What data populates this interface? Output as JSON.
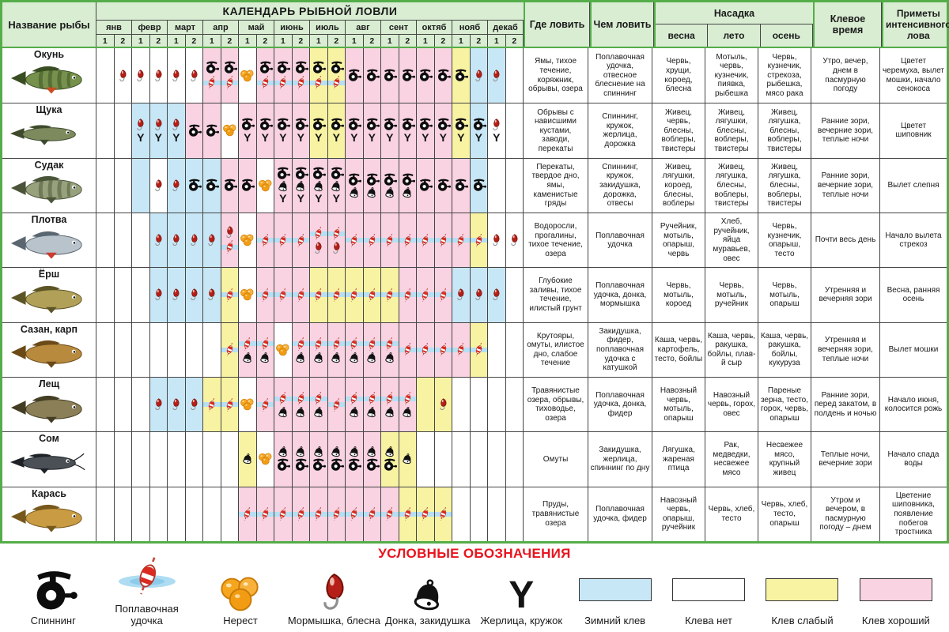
{
  "title": "КАЛЕНДАРЬ РЫБНОЙ ЛОВЛИ",
  "fish_name_header": "Название рыбы",
  "months": [
    "янв",
    "февр",
    "март",
    "апр",
    "май",
    "июнь",
    "июль",
    "авг",
    "сент",
    "октяб",
    "нояб",
    "декаб"
  ],
  "half_labels": [
    "1",
    "2"
  ],
  "columns": {
    "where": "Где ловить",
    "tackle": "Чем ловить",
    "bait": "Насадка",
    "bait_seasons": [
      "весна",
      "лето",
      "осень"
    ],
    "time": "Клевое время",
    "signs": "Приметы интенсивного лова"
  },
  "colors": {
    "winter": "#c8e7f6",
    "none": "#ffffff",
    "weak": "#f8f3a2",
    "good": "#f9d3e2",
    "header_bg": "#d9edd2",
    "frame_green": "#54ad49",
    "legend_red": "#e8141e"
  },
  "rows": [
    {
      "name": "Окунь",
      "fish": {
        "color": "#76914c",
        "dark": "#394d22",
        "stripes": true,
        "fin": "#cc4b22",
        "shape": "fish"
      },
      "cells": [
        "w",
        "w:j",
        "w:j",
        "w:j",
        "w:j",
        "w:j",
        "p:s,f",
        "p:s,f",
        "w:r",
        "p:s,f",
        "p:s,f",
        "p:s,f",
        "y:s,f",
        "y:s,f",
        "p:s",
        "p:s",
        "p:s",
        "p:s",
        "p:s",
        "p:s",
        "y:s",
        "b:j",
        "b:j",
        "w"
      ],
      "where": "Ямы, тихое течение, коряжник, обрывы, озера",
      "tackle": "Поплавочная удочка, отвесное блеснение на спиннинг",
      "bait_spring": "Червь, хрущи, короед, блесна",
      "bait_summer": "Мотыль, червь, кузнечик, пиявка, рыбешка",
      "bait_autumn": "Червь, кузнечик, стрекоза, рыбешка, мясо рака",
      "time": "Утро, вечер, днем в пасмурную погоду",
      "signs": "Цветет черемуха, вылет мошки, начало сенокоса"
    },
    {
      "name": "Щука",
      "fish": {
        "color": "#7d8a5e",
        "dark": "#3e4a2c",
        "stripes": false,
        "shape": "long"
      },
      "cells": [
        "w",
        "w",
        "b:j,z",
        "b:j,z",
        "b:j,z",
        "p:s",
        "p:s",
        "w:r",
        "p:s,z",
        "p:s,z",
        "p:s,z",
        "p:s,z",
        "y:s,z",
        "y:s,z",
        "p:s,z",
        "p:s,z",
        "p:s,z",
        "p:s,z",
        "p:s,z",
        "p:s,z",
        "y:s,z",
        "b:s,z",
        "w:j,z",
        "w"
      ],
      "where": "Обрывы с нависшими кустами, заводи, перекаты",
      "tackle": "Спиннинг, кружок, жерлица, дорожка",
      "bait_spring": "Живец, червь, блесны, воблеры, твистеры",
      "bait_summer": "Живец, лягушки, блесны, воблеры, твистеры",
      "bait_autumn": "Живец, лягушка, блесны, воблеры, твистеры",
      "time": "Ранние зори, вечерние зори, теплые ночи",
      "signs": "Цветет шиповник"
    },
    {
      "name": "Судак",
      "fish": {
        "color": "#97a17c",
        "dark": "#4a5438",
        "stripes": true,
        "shape": "fish"
      },
      "cells": [
        "w",
        "w",
        "b",
        "w:j",
        "b:j",
        "b:s",
        "b:s",
        "p:s",
        "p:s",
        "w:r",
        "p:s,b,z",
        "p:s,b,z",
        "p:s,b,z",
        "p:s,b,z",
        "p:s,b",
        "p:s,b",
        "p:s,b",
        "p:s,b",
        "p:s",
        "p:s",
        "p:s",
        "b:s",
        "w",
        "w"
      ],
      "where": "Перекаты, твердое дно, ямы, каменистые гряды",
      "tackle": "Спиннинг, кружок, закидушка, дорожка, отвесы",
      "bait_spring": "Живец, лягушки, короед, блесны, воблеры",
      "bait_summer": "Живец, лягушка, блесны, воблеры, твистеры",
      "bait_autumn": "Живец, лягушка, блесны, воблеры, твистеры",
      "time": "Ранние зори, вечерние зори, теплые ночи",
      "signs": "Вылет слепня"
    },
    {
      "name": "Плотва",
      "fish": {
        "color": "#b9c3cb",
        "dark": "#5a6670",
        "stripes": false,
        "fin": "#cc3b2e",
        "shape": "fish"
      },
      "cells": [
        "w",
        "w",
        "w",
        "b:j",
        "b:j",
        "b:j",
        "b:j",
        "p:j,f",
        "w:r",
        "p:f",
        "p:f",
        "p:f",
        "p:f,j",
        "p:f,j",
        "p:f",
        "p:f",
        "p:f",
        "p:f",
        "p:f",
        "p:f",
        "p:f",
        "y:f",
        "w:j",
        "w:j"
      ],
      "where": "Водоросли, прогалины, тихое течение, озера",
      "tackle": "Поплавочная удочка",
      "bait_spring": "Ручейник, мотыль, опарыш, червь",
      "bait_summer": "Хлеб, ручейник, яйца муравьев, овес",
      "bait_autumn": "Червь, кузнечик, опарыш, тесто",
      "time": "Почти весь день",
      "signs": "Начало вылета стрекоз"
    },
    {
      "name": "Ёрш",
      "fish": {
        "color": "#b1a058",
        "dark": "#5d5426",
        "stripes": false,
        "shape": "fish"
      },
      "cells": [
        "w",
        "w",
        "w",
        "b:j",
        "b:j",
        "b:j",
        "b:j",
        "y:f",
        "w:r",
        "p:f",
        "p:f",
        "p:f",
        "y:f",
        "y:f",
        "y:f",
        "y:f",
        "y:f",
        "p:f",
        "p:f",
        "p:f",
        "b:j",
        "b:j",
        "b:j",
        "w"
      ],
      "where": "Глубокие заливы, тихое течение, илистый грунт",
      "tackle": "Поплавочная удочка, донка, мормышка",
      "bait_spring": "Червь, мотыль, короед",
      "bait_summer": "Червь, мотыль, ручейник",
      "bait_autumn": "Червь, мотыль, опарыш",
      "time": "Утренняя и вечерняя зори",
      "signs": "Весна, ранняя осень"
    },
    {
      "name": "Сазан, карп",
      "fish": {
        "color": "#b78a3e",
        "dark": "#6b4a17",
        "stripes": false,
        "shape": "fish"
      },
      "cells": [
        "w",
        "w",
        "w",
        "w",
        "w",
        "w",
        "w",
        "y:f",
        "p:f,b",
        "p:f,b",
        "w:r",
        "p:f,b",
        "p:f,b",
        "p:f,b",
        "p:f,b",
        "p:f,b",
        "p:f,b",
        "p:f",
        "p:f",
        "p:f",
        "p:f",
        "y:f",
        "w",
        "w"
      ],
      "where": "Крутояры, омуты, илистое дно, слабое течение",
      "tackle": "Закидушка, фидер, поплавочная удочка с катушкой",
      "bait_spring": "Каша, червь, картофель, тесто, бойлы",
      "bait_summer": "Каша, червь, ракушка, бойлы, плав-й сыр",
      "bait_autumn": "Каша, червь, ракушка, бойлы, кукуруза",
      "time": "Утренняя и вечерняя зори, теплые ночи",
      "signs": "Вылет мошки"
    },
    {
      "name": "Лещ",
      "fish": {
        "color": "#8a7f57",
        "dark": "#433d23",
        "stripes": false,
        "shape": "fish"
      },
      "cells": [
        "w",
        "w",
        "w",
        "b:j",
        "b:j",
        "b:j",
        "y:f",
        "y:f",
        "w:r",
        "p:f",
        "p:f,b",
        "p:f,b",
        "p:f,b",
        "p:f",
        "p:f,b",
        "p:f,b",
        "p:f,b",
        "p:f,b",
        "y",
        "y:j",
        "w",
        "w",
        "w",
        "w"
      ],
      "where": "Травянистые озера, обрывы, тиховодье, озера",
      "tackle": "Поплавочная удочка, донка, фидер",
      "bait_spring": "Навозный червь, мотыль, опарыш",
      "bait_summer": "Навозный червь, горох, овес",
      "bait_autumn": "Пареные зерна, тесто, горох, червь, опарыш",
      "time": "Ранние зори, перед закатом, в полдень и ночью",
      "signs": "Начало июня, колосится рожь"
    },
    {
      "name": "Сом",
      "fish": {
        "color": "#4a5056",
        "dark": "#1e2226",
        "stripes": false,
        "shape": "long",
        "whiskers": true
      },
      "cells": [
        "w",
        "w",
        "w",
        "w",
        "w",
        "w",
        "w",
        "w",
        "y:b",
        "w:r",
        "p:b,s",
        "p:b,s",
        "p:b,s",
        "p:b,s",
        "p:b,s",
        "p:b,s",
        "y:b,s",
        "y:b",
        "w",
        "w",
        "w",
        "w",
        "w",
        "w"
      ],
      "where": "Омуты",
      "tackle": "Закидушка, жерлица, спиннинг по дну",
      "bait_spring": "Лягушка, жареная птица",
      "bait_summer": "Рак, медведки, несвежее мясо",
      "bait_autumn": "Несвежее мясо, крупный живец",
      "time": "Теплые ночи, вечерние зори",
      "signs": "Начало спада воды"
    },
    {
      "name": "Карась",
      "fish": {
        "color": "#c99c43",
        "dark": "#77581c",
        "stripes": false,
        "shape": "fish"
      },
      "cells": [
        "w",
        "w",
        "w",
        "w",
        "w",
        "w",
        "w",
        "w",
        "p:f",
        "p:f",
        "p:f",
        "p:f",
        "p:f",
        "p:f",
        "p:f",
        "p:f",
        "p:f",
        "y:f",
        "y:f",
        "y:f",
        "w",
        "w",
        "w",
        "w"
      ],
      "where": "Пруды, травянистые озера",
      "tackle": "Поплавочная удочка, фидер",
      "bait_spring": "Навозный червь, опарыш, ручейник",
      "bait_summer": "Червь, хлеб, тесто",
      "bait_autumn": "Червь, хлеб, тесто, опарыш",
      "time": "Утром и вечером, в пасмурную погоду – днем",
      "signs": "Цветение шиповника, появление побегов тростника"
    }
  ],
  "legend": {
    "title": "УСЛОВНЫЕ ОБОЗНАЧЕНИЯ",
    "items": [
      {
        "icon": "spin",
        "label": "Спиннинг"
      },
      {
        "icon": "float",
        "label": "Поплавочная удочка"
      },
      {
        "icon": "roe",
        "label": "Нерест"
      },
      {
        "icon": "jig",
        "label": "Мормышка, блесна"
      },
      {
        "icon": "bell",
        "label": "Донка, закидушка"
      },
      {
        "icon": "zherl",
        "label": "Жерлица, кружок"
      },
      {
        "swatch": "winter",
        "hex": "#c8e7f6",
        "label": "Зимний клев"
      },
      {
        "swatch": "none",
        "hex": "#ffffff",
        "label": "Клева нет"
      },
      {
        "swatch": "weak",
        "hex": "#f8f3a2",
        "label": "Клев слабый"
      },
      {
        "swatch": "good",
        "hex": "#f9d3e2",
        "label": "Клев хороший"
      }
    ]
  }
}
